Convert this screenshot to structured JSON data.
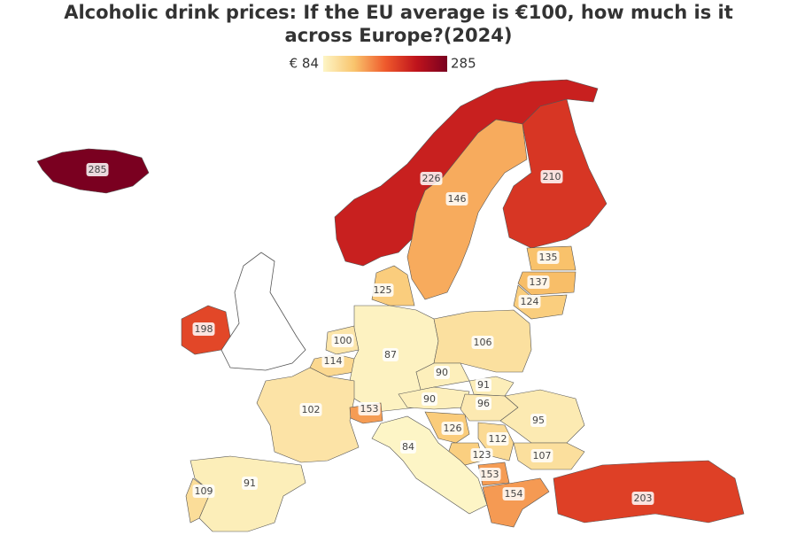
{
  "title_lines": [
    "Alcoholic drink prices: If the EU average is €100, how much is it",
    "across Europe?(2024)"
  ],
  "colorbar": {
    "min": {
      "value": 84,
      "label": "€ 84"
    },
    "max": 285,
    "colors": [
      "#fdf5c6",
      "#f9c46c",
      "#ef5a2c",
      "#c0141c",
      "#7a0020"
    ]
  },
  "regions": [
    285,
    226,
    146,
    210,
    135,
    137,
    124,
    125,
    198,
    100,
    114,
    87,
    106,
    102,
    90,
    91,
    90,
    153,
    96,
    95,
    126,
    112,
    123,
    84,
    107,
    153,
    154,
    203,
    91,
    109
  ]
}
